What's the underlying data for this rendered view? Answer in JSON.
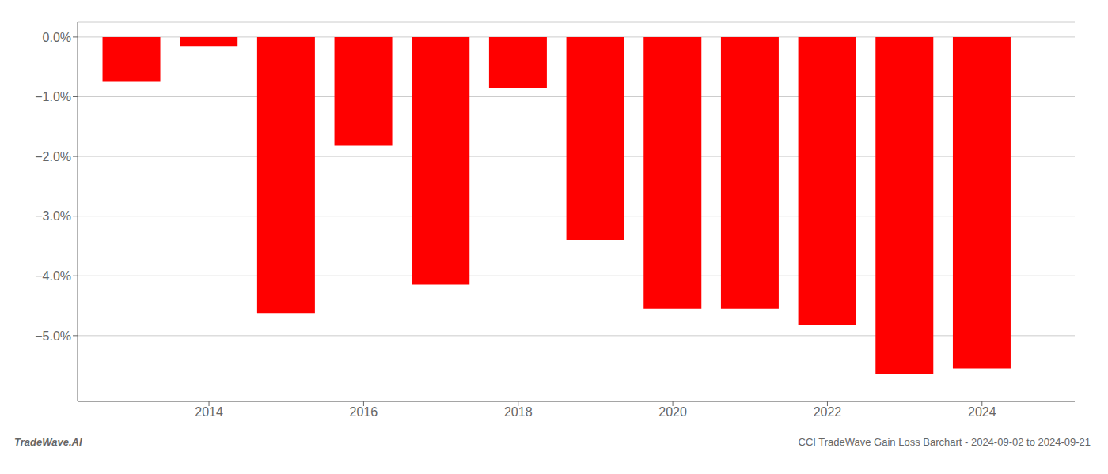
{
  "chart_data": {
    "type": "bar",
    "x": [
      2013,
      2014,
      2015,
      2016,
      2017,
      2018,
      2019,
      2020,
      2021,
      2022,
      2023,
      2024
    ],
    "values": [
      -0.75,
      -0.15,
      -4.62,
      -1.82,
      -4.15,
      -0.85,
      -3.4,
      -4.55,
      -4.55,
      -4.82,
      -5.65,
      -5.55
    ],
    "color": "#ff0000",
    "xlim": [
      2012.3,
      2025.2
    ],
    "xticks": [
      2014,
      2016,
      2018,
      2020,
      2022,
      2024
    ],
    "ylim": [
      -6.1,
      0.25
    ],
    "yticks": [
      {
        "value": 0.0,
        "label": "0.0%"
      },
      {
        "value": -1.0,
        "label": "−1.0%"
      },
      {
        "value": -2.0,
        "label": "−2.0%"
      },
      {
        "value": -3.0,
        "label": "−3.0%"
      },
      {
        "value": -4.0,
        "label": "−4.0%"
      },
      {
        "value": -5.0,
        "label": "−5.0%"
      }
    ],
    "grid": true,
    "annotations": [
      "TradeWave.AI",
      "CCI TradeWave Gain Loss Barchart - 2024-09-02 to 2024-09-21"
    ]
  }
}
